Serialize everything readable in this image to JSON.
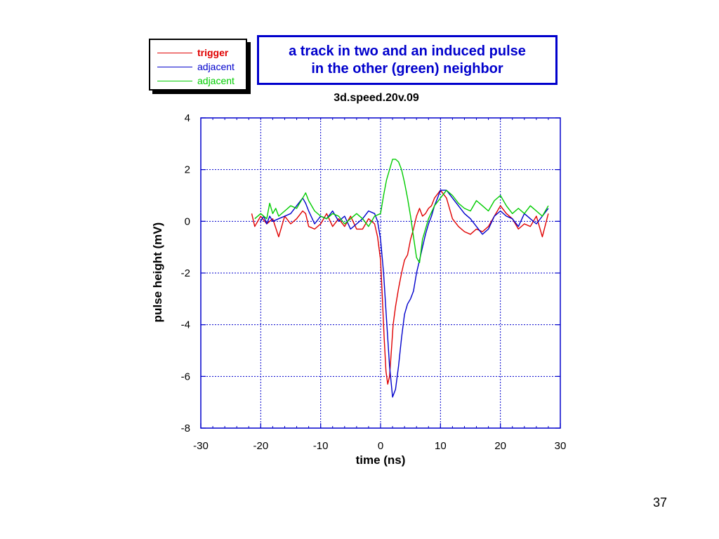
{
  "slide": {
    "header_title_line1": "a track in two and an induced pulse",
    "header_title_line2": "in the other (green) neighbor",
    "page_number": "37"
  },
  "chart_data": {
    "type": "line",
    "title": "3d.speed.20v.09",
    "xlabel": "time (ns)",
    "ylabel": "pulse height (mV)",
    "xlim": [
      -30,
      30
    ],
    "ylim": [
      -8,
      4
    ],
    "xticks": [
      -30,
      -20,
      -10,
      0,
      10,
      20,
      30
    ],
    "yticks": [
      4,
      2,
      0,
      -2,
      -4,
      -6,
      -8
    ],
    "grid": true,
    "legend_position": "top-left, outside plot",
    "colors": {
      "frame": "#0000cc",
      "grid": "#0000cc",
      "header": "#0000cc"
    },
    "series": [
      {
        "name": "trigger",
        "color": "#e00000",
        "x": [
          -21.5,
          -21,
          -20,
          -19,
          -18,
          -17,
          -16.5,
          -16,
          -15,
          -14,
          -13,
          -12.5,
          -12,
          -11,
          -10,
          -9,
          -8,
          -7,
          -6,
          -5,
          -4,
          -3,
          -2,
          -1,
          -0.5,
          0,
          0.3,
          0.6,
          0.9,
          1.2,
          1.5,
          1.8,
          2.1,
          2.5,
          3,
          3.5,
          4,
          4.5,
          5,
          5.5,
          6,
          6.5,
          7,
          7.5,
          8,
          8.5,
          9,
          10,
          11,
          12,
          13,
          14,
          15,
          16,
          17,
          18,
          19,
          20,
          21,
          22,
          23,
          24,
          25,
          26,
          27,
          28
        ],
        "y": [
          0.3,
          -0.2,
          0.2,
          -0.1,
          0.1,
          -0.6,
          -0.2,
          0.2,
          -0.1,
          0.1,
          0.4,
          0.3,
          -0.2,
          -0.3,
          -0.1,
          0.3,
          -0.2,
          0.1,
          -0.2,
          0.2,
          -0.3,
          -0.3,
          0.1,
          -0.1,
          -0.6,
          -1.5,
          -3,
          -4.5,
          -5.8,
          -6.3,
          -6.0,
          -5.0,
          -4.0,
          -3.3,
          -2.6,
          -2.0,
          -1.5,
          -1.3,
          -0.7,
          -0.3,
          0.2,
          0.5,
          0.2,
          0.3,
          0.5,
          0.6,
          0.9,
          1.2,
          0.9,
          0.1,
          -0.2,
          -0.4,
          -0.5,
          -0.3,
          -0.4,
          -0.2,
          0.2,
          0.6,
          0.3,
          0.1,
          -0.3,
          -0.1,
          -0.2,
          0.2,
          -0.6,
          0.3
        ]
      },
      {
        "name": "adjacent",
        "color": "#0000cc",
        "x": [
          -20,
          -19.5,
          -19,
          -18.5,
          -18,
          -17,
          -16,
          -15,
          -14,
          -13,
          -12.5,
          -12,
          -11,
          -10,
          -9,
          -8,
          -7,
          -6,
          -5,
          -4,
          -3,
          -2,
          -1,
          -0.5,
          0,
          0.5,
          1,
          1.5,
          2,
          2.5,
          3,
          3.5,
          4,
          4.5,
          5,
          5.5,
          6,
          6.5,
          7,
          7.5,
          8,
          8.5,
          9,
          9.5,
          10,
          11,
          12,
          13,
          14,
          15,
          16,
          17,
          18,
          19,
          20,
          21,
          22,
          23,
          24,
          25,
          26,
          27,
          28
        ],
        "y": [
          0,
          0.2,
          -0.1,
          0.2,
          0,
          0.1,
          0.2,
          0.3,
          0.6,
          0.9,
          0.7,
          0.4,
          -0.1,
          0.2,
          0.1,
          0.4,
          0,
          0.2,
          -0.3,
          -0.1,
          0.1,
          0.4,
          0.3,
          0,
          -0.7,
          -2.0,
          -3.8,
          -5.6,
          -6.8,
          -6.5,
          -5.6,
          -4.5,
          -3.6,
          -3.2,
          -3.0,
          -2.7,
          -2.0,
          -1.5,
          -1.0,
          -0.5,
          -0.1,
          0.2,
          0.6,
          0.9,
          1.2,
          1.2,
          0.9,
          0.6,
          0.3,
          0.1,
          -0.2,
          -0.5,
          -0.3,
          0.2,
          0.4,
          0.2,
          0.1,
          -0.2,
          0.3,
          0.1,
          -0.1,
          0.2,
          0.5
        ]
      },
      {
        "name": "adjacent",
        "color": "#00cc00",
        "x": [
          -21,
          -20,
          -19,
          -18.5,
          -18,
          -17.5,
          -17,
          -16,
          -15,
          -14,
          -13,
          -12.5,
          -12,
          -11,
          -10,
          -9,
          -8,
          -7,
          -6,
          -5,
          -4,
          -3,
          -2,
          -1,
          0,
          0.5,
          1,
          1.5,
          2,
          2.5,
          3,
          3.5,
          4,
          4.5,
          5,
          5.5,
          6,
          6.5,
          7,
          8,
          9,
          10,
          11,
          12,
          13,
          14,
          15,
          16,
          17,
          18,
          19,
          20,
          21,
          22,
          23,
          24,
          25,
          26,
          27,
          28
        ],
        "y": [
          0.1,
          0.3,
          0.1,
          0.7,
          0.3,
          0.5,
          0.2,
          0.4,
          0.6,
          0.5,
          0.9,
          1.1,
          0.8,
          0.4,
          0.2,
          0.1,
          0.3,
          0.2,
          -0.1,
          0.1,
          0.3,
          0.1,
          -0.2,
          0.2,
          0.3,
          1.0,
          1.6,
          2.0,
          2.4,
          2.4,
          2.3,
          2.0,
          1.5,
          0.9,
          0.2,
          -0.6,
          -1.4,
          -1.6,
          -0.7,
          0.1,
          0.6,
          0.9,
          1.2,
          1.0,
          0.7,
          0.5,
          0.4,
          0.8,
          0.6,
          0.4,
          0.8,
          1.0,
          0.6,
          0.3,
          0.5,
          0.3,
          0.6,
          0.4,
          0.2,
          0.6
        ]
      }
    ]
  }
}
